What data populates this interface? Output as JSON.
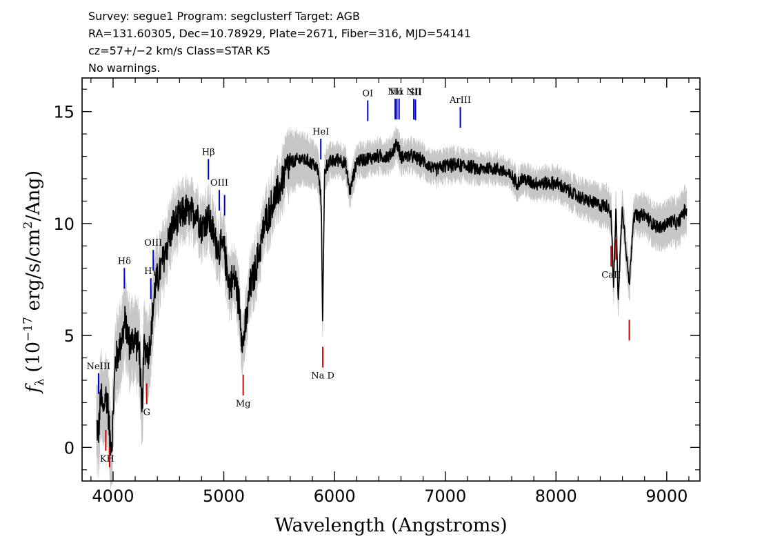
{
  "header": {
    "line1": "Survey: segue1 Program: segclusterf Target: AGB",
    "line2": "RA=131.60305, Dec=10.78929, Plate=2671, Fiber=316, MJD=54141",
    "line3": "cz=57+/−2 km/s Class=STAR K5",
    "line4": "No warnings."
  },
  "chart_data": {
    "type": "line",
    "title": "",
    "xlabel": "Wavelength (Angstroms)",
    "ylabel": "f_λ (10^-17 erg/s/cm^2/Ang)",
    "ylabel_parts": {
      "f": "f",
      "sub": "λ",
      "pre": " (10",
      "exp1": "−17",
      "mid": " erg/s/cm",
      "exp2": "2",
      "post": "/Ang)"
    },
    "xlim": [
      3720,
      9300
    ],
    "ylim": [
      -1.5,
      16.5
    ],
    "xticks": [
      4000,
      5000,
      6000,
      7000,
      8000,
      9000
    ],
    "xtick_labels": [
      "4000",
      "5000",
      "6000",
      "7000",
      "8000",
      "9000"
    ],
    "yticks": [
      0,
      5,
      10,
      15
    ],
    "ytick_labels": [
      "0",
      "5",
      "10",
      "15"
    ],
    "colors": {
      "flux": "#000000",
      "error": "#c0c0c0",
      "emission": "#0000cc",
      "absorption": "#cc0000"
    },
    "series": [
      {
        "role": "flux",
        "x": [
          3850,
          3870,
          3890,
          3910,
          3930,
          3950,
          3970,
          3990,
          4020,
          4050,
          4080,
          4110,
          4150,
          4200,
          4240,
          4260,
          4280,
          4320,
          4340,
          4380,
          4420,
          4460,
          4500,
          4550,
          4600,
          4650,
          4700,
          4750,
          4800,
          4860,
          4900,
          4950,
          5000,
          5050,
          5100,
          5140,
          5170,
          5200,
          5240,
          5280,
          5320,
          5360,
          5400,
          5450,
          5500,
          5560,
          5600,
          5650,
          5700,
          5750,
          5800,
          5850,
          5880,
          5893,
          5910,
          5940,
          6000,
          6050,
          6100,
          6140,
          6200,
          6300,
          6400,
          6500,
          6562,
          6600,
          6700,
          6800,
          6900,
          7000,
          7100,
          7200,
          7300,
          7400,
          7500,
          7600,
          7650,
          7700,
          7800,
          7900,
          8000,
          8100,
          8200,
          8300,
          8400,
          8460,
          8498,
          8520,
          8542,
          8560,
          8600,
          8662,
          8700,
          8750,
          8800,
          8850,
          8900,
          8950,
          9000,
          9050,
          9100,
          9150,
          9180
        ],
        "y": [
          1.0,
          0.7,
          2.4,
          1.5,
          2.3,
          2.2,
          0.5,
          0.2,
          3.8,
          4.3,
          4.9,
          5.6,
          4.6,
          4.9,
          4.2,
          1.2,
          4.6,
          4.2,
          4.9,
          7.2,
          7.8,
          8.5,
          9.3,
          10.0,
          10.2,
          10.6,
          10.4,
          10.6,
          9.8,
          10.3,
          9.6,
          8.9,
          8.9,
          7.3,
          7.6,
          6.4,
          4.6,
          5.5,
          7.2,
          7.8,
          8.7,
          9.8,
          10.4,
          11.0,
          11.5,
          12.4,
          12.7,
          12.8,
          12.9,
          12.8,
          12.7,
          12.4,
          11.0,
          5.6,
          12.3,
          12.7,
          12.8,
          12.9,
          12.6,
          11.4,
          12.8,
          12.9,
          13.0,
          13.0,
          13.6,
          13.0,
          13.0,
          12.8,
          12.4,
          12.6,
          12.6,
          12.6,
          12.4,
          12.5,
          12.4,
          12.1,
          11.8,
          12.0,
          11.8,
          11.8,
          11.8,
          11.5,
          11.2,
          11.0,
          10.8,
          10.8,
          10.5,
          7.2,
          10.8,
          6.6,
          10.8,
          7.2,
          10.4,
          10.3,
          10.4,
          10.1,
          9.9,
          9.8,
          10.0,
          10.1,
          10.0,
          10.5,
          10.6
        ]
      },
      {
        "role": "error_envelope",
        "x": [
          3850,
          4000,
          4300,
          4600,
          5000,
          5200,
          5500,
          5600,
          6000,
          6500,
          7000,
          7500,
          8000,
          8500,
          8700,
          9000,
          9180
        ],
        "y": [
          1.6,
          1.5,
          1.5,
          0.9,
          1.0,
          1.0,
          0.9,
          1.2,
          0.6,
          0.6,
          0.6,
          0.5,
          0.6,
          0.8,
          0.7,
          0.9,
          0.9
        ]
      }
    ],
    "emission_lines": [
      {
        "label": "NeIII",
        "x": 3869
      },
      {
        "label": "Hδ",
        "x": 4102
      },
      {
        "label": "Hγ",
        "x": 4341
      },
      {
        "label": "OIII",
        "x": 4363
      },
      {
        "label": "Hβ",
        "x": 4861
      },
      {
        "label": "OIII",
        "x": 4959
      },
      {
        "label": "",
        "x": 5007
      },
      {
        "label": "HeI",
        "x": 5876
      },
      {
        "label": "OI",
        "x": 6300
      },
      {
        "label": "NII",
        "x": 6548
      },
      {
        "label": "Hα",
        "x": 6563
      },
      {
        "label": "",
        "x": 6583
      },
      {
        "label": "NII",
        "x": 6716
      },
      {
        "label": "SII",
        "x": 6731
      },
      {
        "label": "ArIII",
        "x": 7136
      }
    ],
    "absorption_lines": [
      {
        "label": "KH",
        "x": 3934
      },
      {
        "label": "",
        "x": 3969
      },
      {
        "label": "G",
        "x": 4304
      },
      {
        "label": "Mg",
        "x": 5175
      },
      {
        "label": "Na D",
        "x": 5894
      },
      {
        "label": "CaII",
        "x": 8498
      },
      {
        "label": "",
        "x": 8542
      },
      {
        "label": "",
        "x": 8662
      }
    ]
  }
}
